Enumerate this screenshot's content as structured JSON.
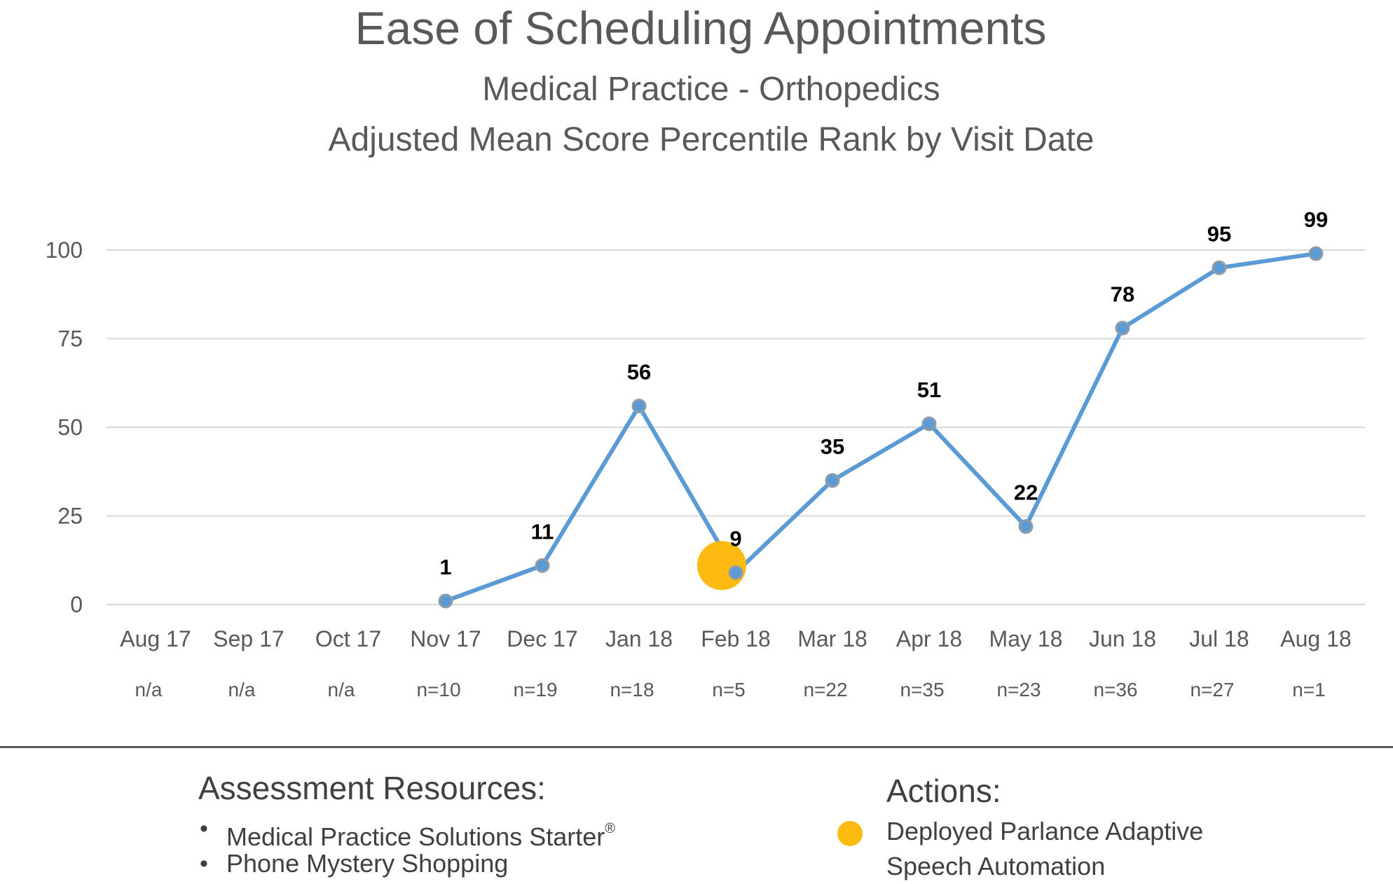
{
  "chart_data": {
    "type": "line",
    "title": "Ease of Scheduling Appointments",
    "subtitle_lines": [
      "Medical Practice - Orthopedics",
      "Adjusted Mean Score Percentile Rank by Visit Date"
    ],
    "categories": [
      "Aug 17",
      "Sep 17",
      "Oct 17",
      "Nov 17",
      "Dec 17",
      "Jan 18",
      "Feb 18",
      "Mar 18",
      "Apr 18",
      "May 18",
      "Jun 18",
      "Jul 18",
      "Aug 18"
    ],
    "sample_sizes": [
      "n/a",
      "n/a",
      "n/a",
      "n=10",
      "n=19",
      "n=18",
      "n=5",
      "n=22",
      "n=35",
      "n=23",
      "n=36",
      "n=27",
      "n=1"
    ],
    "series": [
      {
        "values": [
          null,
          null,
          null,
          1,
          11,
          56,
          9,
          35,
          51,
          22,
          78,
          95,
          99
        ]
      }
    ],
    "y_ticks": [
      0,
      25,
      50,
      75,
      100
    ],
    "ylim": [
      0,
      100
    ],
    "grid": true,
    "action_marker": {
      "category": "Feb 18",
      "value": 11
    },
    "colors": {
      "line": "#5B9BD5",
      "point_stroke": "#8E9BAA",
      "action": "#FDBB12",
      "grid": "#D9D9D9"
    }
  },
  "legend": {
    "resources_heading": "Assessment Resources:",
    "resources": [
      {
        "text": "Medical Practice Solutions Starter",
        "mark": "®"
      },
      {
        "text": "Phone Mystery Shopping",
        "mark": ""
      }
    ],
    "bullet": "•",
    "actions_heading": "Actions:",
    "actions": [
      {
        "text": "Deployed Parlance Adaptive Speech Automation"
      }
    ]
  }
}
